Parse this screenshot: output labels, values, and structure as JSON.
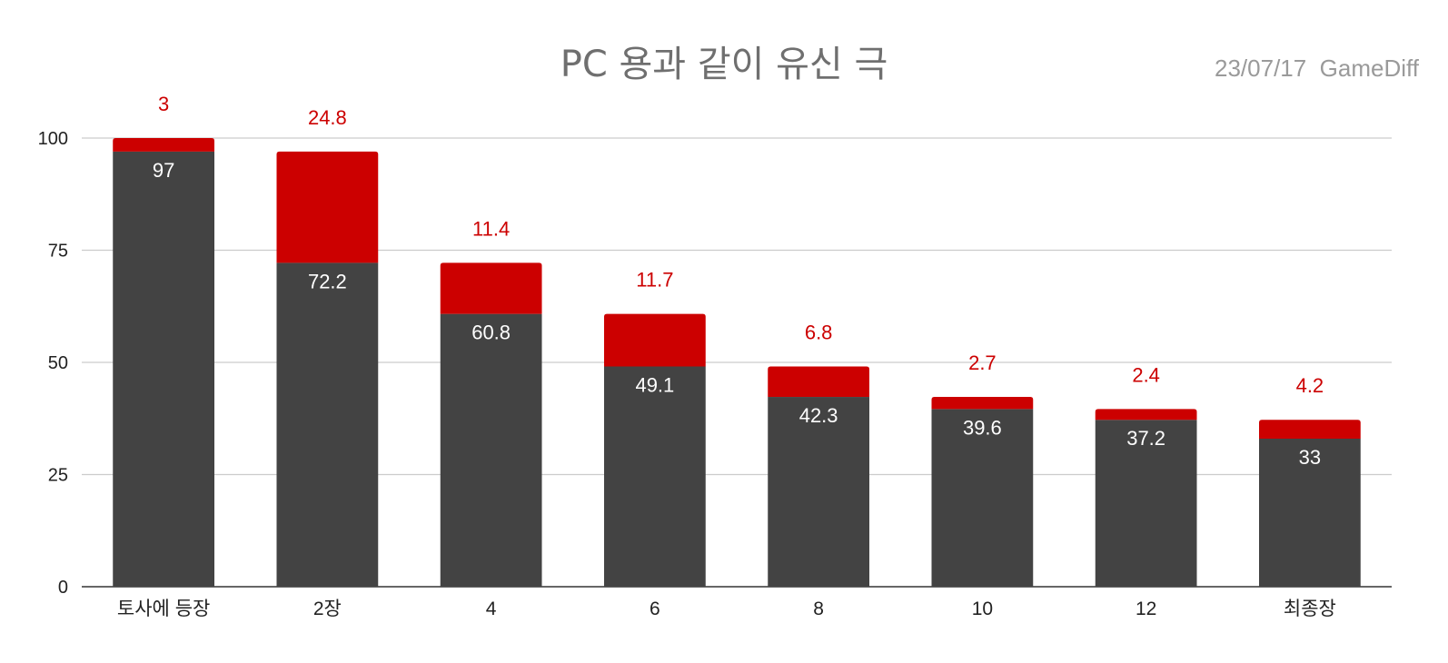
{
  "title": "PC 용과 같이 유신 극",
  "stamp": "23/07/17  GameDiff",
  "chart_data": {
    "type": "bar",
    "stacked": true,
    "title": "PC 용과 같이 유신 극",
    "categories": [
      "토사에 등장",
      "2장",
      "4",
      "6",
      "8",
      "10",
      "12",
      "최종장"
    ],
    "series": [
      {
        "values": [
          97,
          72.2,
          60.8,
          49.1,
          42.3,
          39.6,
          37.2,
          33
        ],
        "color": "#434343"
      },
      {
        "values": [
          3,
          24.8,
          11.4,
          11.7,
          6.8,
          2.7,
          2.4,
          4.2
        ],
        "color": "#cc0000"
      }
    ],
    "ylim": [
      0,
      100
    ],
    "yticks": [
      0,
      25,
      50,
      75,
      100
    ],
    "grid": true,
    "legend": "none",
    "xlabel": "",
    "ylabel": ""
  }
}
